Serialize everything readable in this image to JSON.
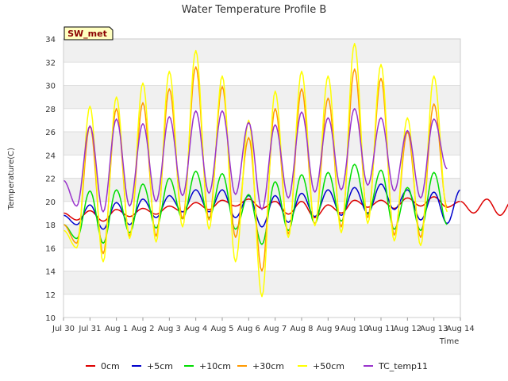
{
  "chart_data": {
    "type": "line",
    "title": "Water Temperature Profile B",
    "xlabel": "Time",
    "ylabel": "Temperature(C)",
    "ylim": [
      10,
      34
    ],
    "yticks": [
      10,
      12,
      14,
      16,
      18,
      20,
      22,
      24,
      26,
      28,
      30,
      32,
      34
    ],
    "xlim": [
      "2023-07-30",
      "2023-08-14"
    ],
    "xticks": [
      {
        "x": "2023-07-30",
        "label": "Jul 30"
      },
      {
        "x": "2023-07-31",
        "label": "Jul 31"
      },
      {
        "x": "2023-08-01",
        "label": "Aug 1"
      },
      {
        "x": "2023-08-02",
        "label": "Aug 2"
      },
      {
        "x": "2023-08-03",
        "label": "Aug 3"
      },
      {
        "x": "2023-08-04",
        "label": "Aug 4"
      },
      {
        "x": "2023-08-05",
        "label": "Aug 5"
      },
      {
        "x": "2023-08-06",
        "label": "Aug 6"
      },
      {
        "x": "2023-08-07",
        "label": "Aug 7"
      },
      {
        "x": "2023-08-08",
        "label": "Aug 8"
      },
      {
        "x": "2023-08-09",
        "label": "Aug 9"
      },
      {
        "x": "2023-08-10",
        "label": "Aug 10"
      },
      {
        "x": "2023-08-11",
        "label": "Aug 11"
      },
      {
        "x": "2023-08-12",
        "label": "Aug 12"
      },
      {
        "x": "2023-08-13",
        "label": "Aug 13"
      },
      {
        "x": "2023-08-14",
        "label": "Aug 14"
      }
    ],
    "background_bands": "alternating light grey horizontal bands",
    "legend_position": "bottom",
    "annotation": "SW_met",
    "x_start": "2023-07-30T00:00",
    "x_step": "12 hours",
    "series": [
      {
        "name": "0cm",
        "color": "#dd0000",
        "values": [
          19.0,
          18.4,
          19.2,
          18.3,
          19.3,
          18.7,
          19.4,
          18.9,
          19.6,
          19.1,
          19.9,
          19.3,
          20.1,
          19.6,
          20.2,
          19.4,
          20.0,
          18.9,
          20.0,
          18.6,
          19.7,
          19.0,
          20.1,
          19.5,
          20.1,
          19.4,
          20.3,
          19.6,
          20.4,
          19.5,
          20.0,
          19.0,
          20.2,
          18.8,
          20.2
        ]
      },
      {
        "name": "+5cm",
        "color": "#0000cc",
        "values": [
          18.8,
          18.0,
          19.7,
          17.6,
          19.9,
          18.0,
          20.2,
          18.6,
          20.5,
          19.1,
          21.0,
          19.1,
          21.0,
          18.6,
          20.5,
          17.8,
          20.5,
          18.2,
          20.7,
          18.7,
          21.0,
          18.8,
          21.2,
          19.0,
          21.5,
          19.3,
          21.0,
          18.4,
          20.8,
          18.1,
          21.0
        ]
      },
      {
        "name": "+10cm",
        "color": "#00dd00",
        "values": [
          18.0,
          16.8,
          20.9,
          16.4,
          21.0,
          17.3,
          21.5,
          17.7,
          22.0,
          18.5,
          22.6,
          18.6,
          22.4,
          17.6,
          20.6,
          16.3,
          21.7,
          17.5,
          22.3,
          18.1,
          22.5,
          18.3,
          23.2,
          18.9,
          22.7,
          17.6,
          21.2,
          17.5,
          22.5,
          18.0
        ]
      },
      {
        "name": "+30cm",
        "color": "#ff9900",
        "values": [
          18.0,
          16.4,
          26.5,
          15.5,
          28.0,
          17.0,
          28.5,
          17.0,
          29.7,
          18.5,
          31.6,
          18.4,
          29.9,
          16.9,
          25.5,
          14.0,
          28.0,
          17.2,
          29.7,
          18.0,
          28.9,
          17.8,
          31.4,
          18.6,
          30.6,
          17.1,
          26.0,
          16.9,
          28.4,
          19.5
        ]
      },
      {
        "name": "+50cm",
        "color": "#ffff00",
        "values": [
          17.5,
          16.0,
          28.2,
          14.8,
          29.0,
          16.8,
          30.2,
          16.5,
          31.2,
          17.8,
          33.0,
          17.6,
          30.8,
          14.8,
          27.0,
          11.8,
          29.5,
          16.9,
          31.2,
          17.9,
          30.8,
          17.3,
          33.6,
          18.1,
          31.8,
          16.6,
          27.2,
          16.2,
          30.8,
          19.1
        ]
      },
      {
        "name": "TC_temp11",
        "color": "#9933cc",
        "values": [
          21.8,
          19.6,
          26.5,
          19.1,
          27.1,
          19.6,
          26.7,
          20.0,
          27.3,
          20.5,
          27.8,
          20.7,
          27.8,
          20.6,
          26.8,
          19.3,
          26.6,
          20.3,
          27.7,
          20.8,
          27.2,
          21.0,
          28.0,
          21.4,
          27.2,
          20.9,
          26.1,
          20.3,
          27.1,
          22.8
        ]
      }
    ]
  }
}
